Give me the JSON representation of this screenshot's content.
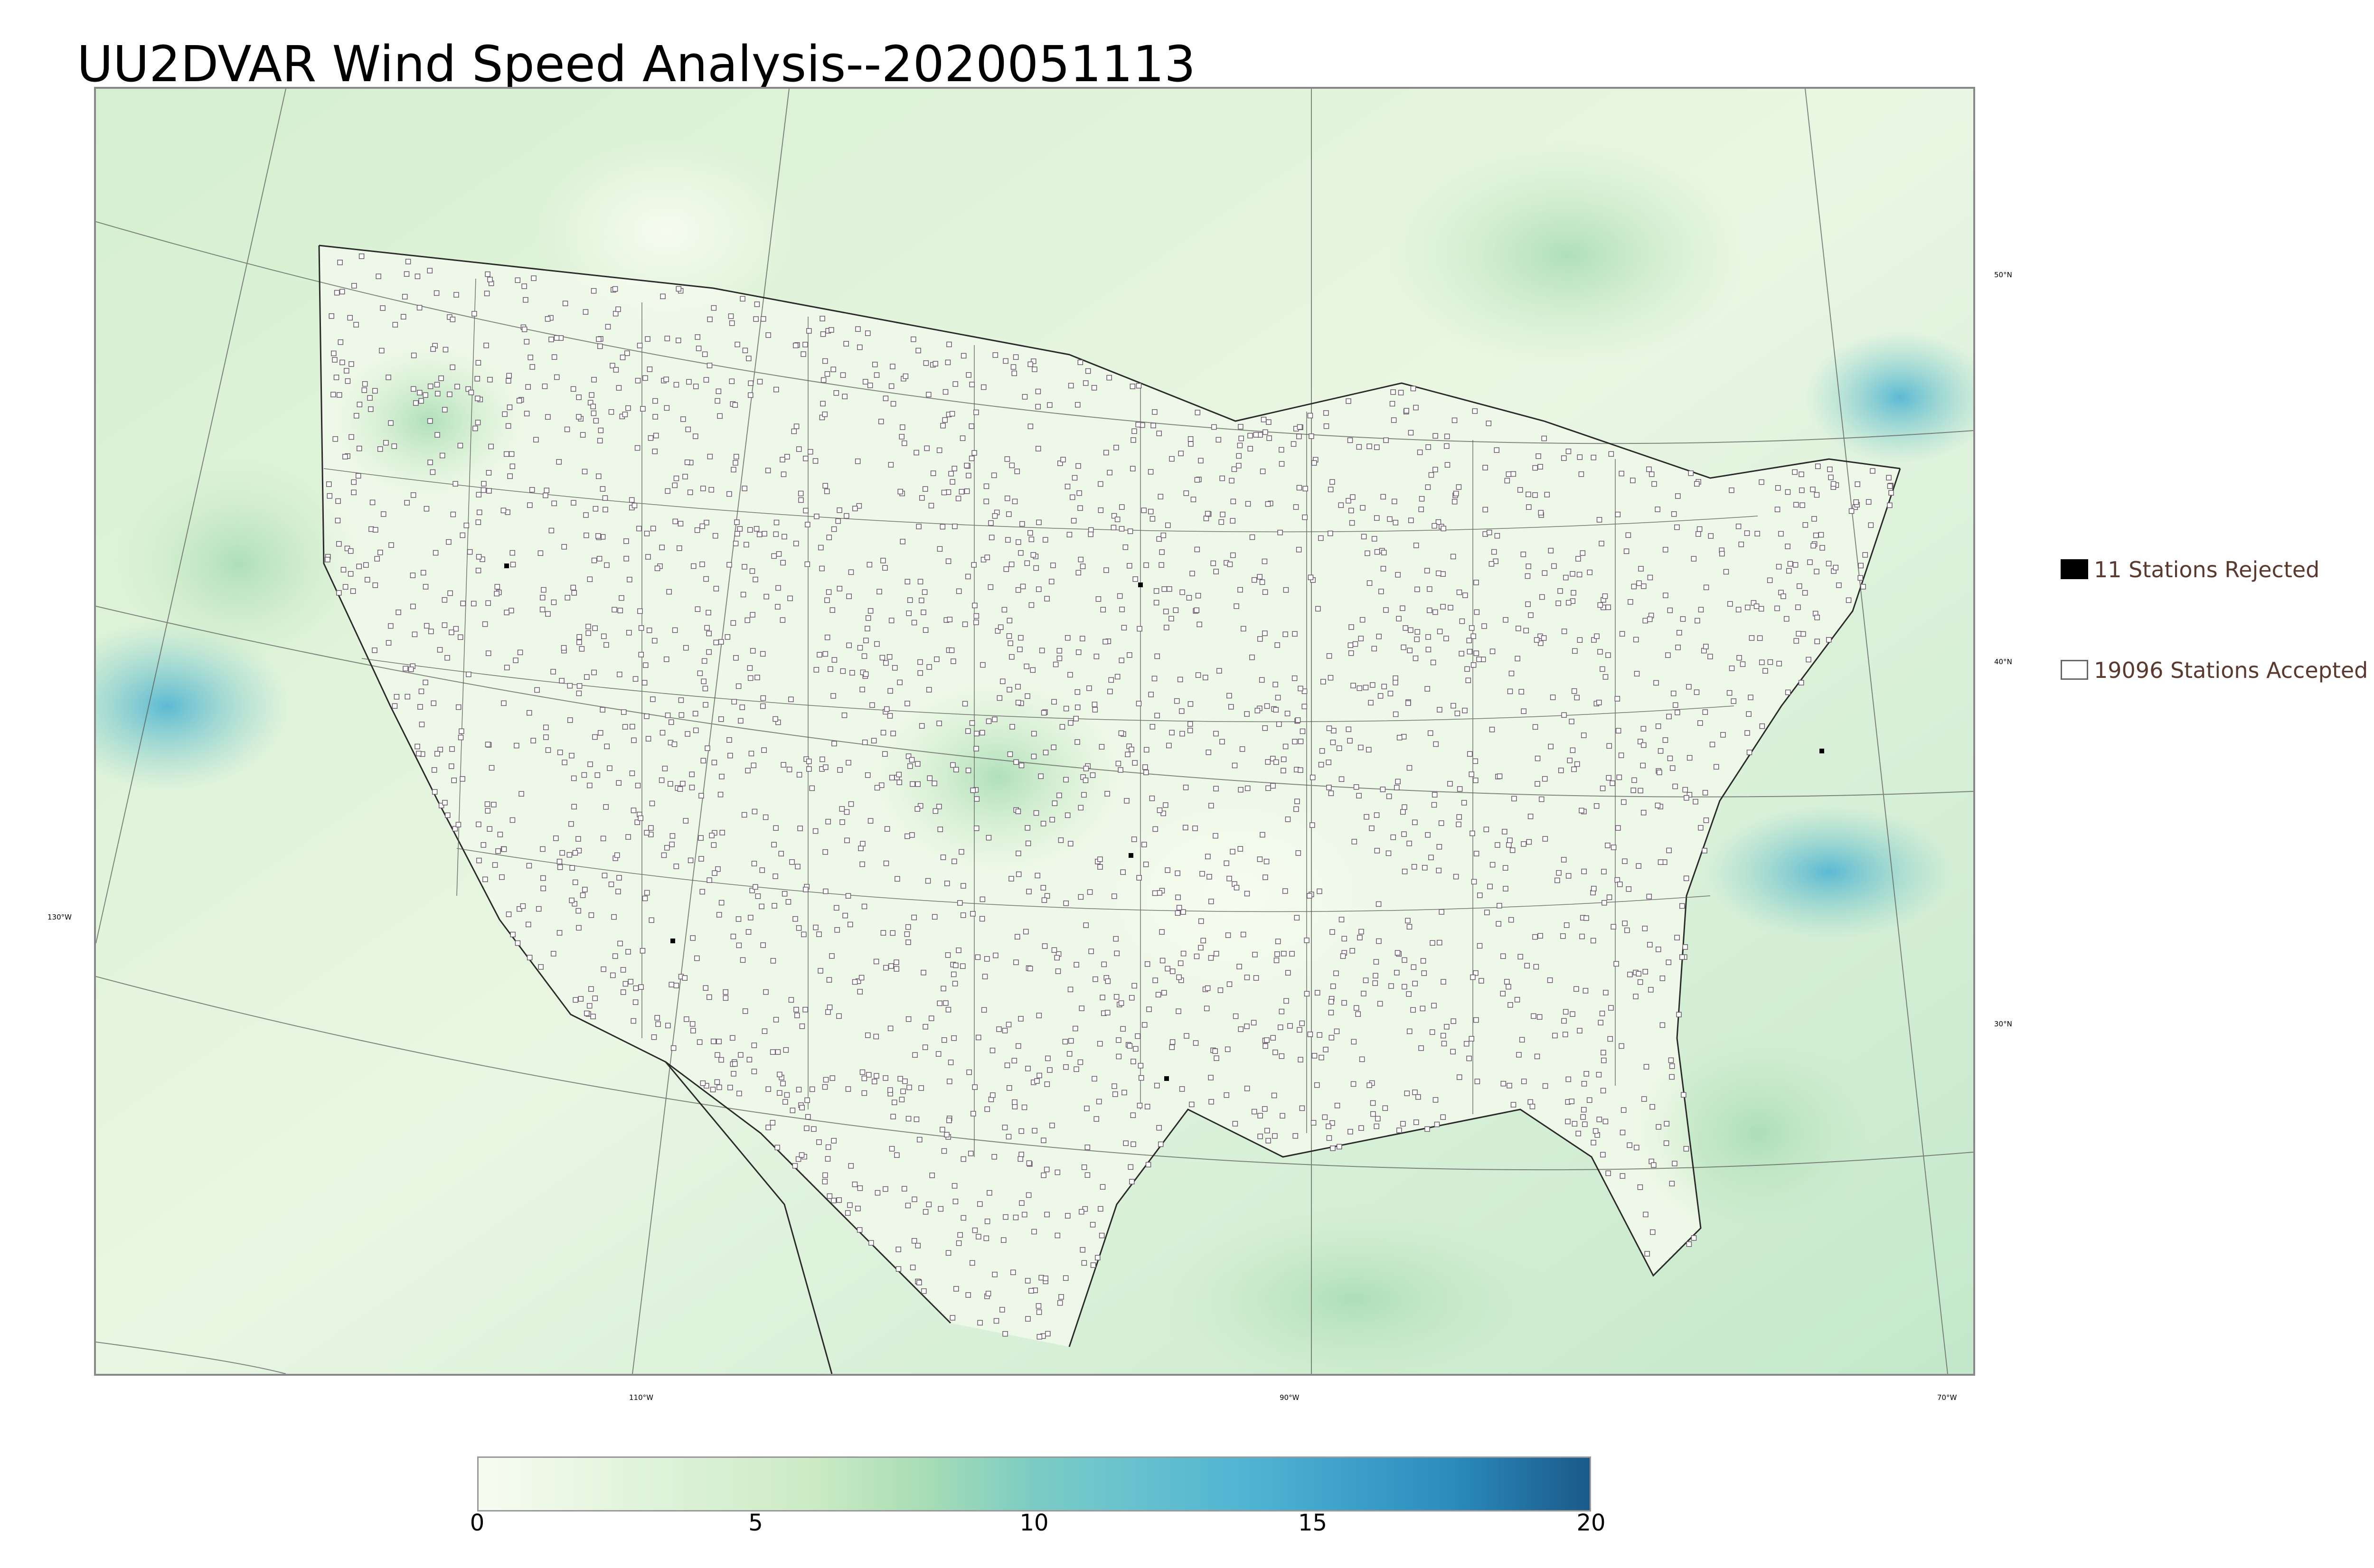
{
  "title": "UU2DVAR Wind Speed Analysis--2020051113",
  "map": {
    "lat_labels": [
      "50°N",
      "40°N",
      "30°N"
    ],
    "lon_labels": [
      "130°W",
      "110°W",
      "90°W",
      "70°W"
    ],
    "colors": {
      "land_base": "#e4f4dc",
      "ocean_base": "#bfe6c8",
      "boundary": "#2a2a2a",
      "station_accepted": "#ffffff",
      "station_rejected": "#000000"
    }
  },
  "legend": {
    "rejected": {
      "label": "11 Stations Rejected",
      "color": "#000000"
    },
    "accepted": {
      "label": "19096 Stations Accepted",
      "color": "#ffffff"
    }
  },
  "colorbar": {
    "ticks": [
      "0",
      "5",
      "10",
      "15",
      "20"
    ],
    "min": 0,
    "max": 20,
    "stops": [
      {
        "value": 0,
        "color": "#f7fcf0"
      },
      {
        "value": 3,
        "color": "#e0f3db"
      },
      {
        "value": 6,
        "color": "#ccebc5"
      },
      {
        "value": 8,
        "color": "#a8ddb5"
      },
      {
        "value": 10,
        "color": "#7bccc4"
      },
      {
        "value": 11.5,
        "color": "#6bc3cd"
      },
      {
        "value": 14,
        "color": "#4eb3d3"
      },
      {
        "value": 17.5,
        "color": "#2b8cbe"
      },
      {
        "value": 20,
        "color": "#1a5a88"
      }
    ]
  }
}
